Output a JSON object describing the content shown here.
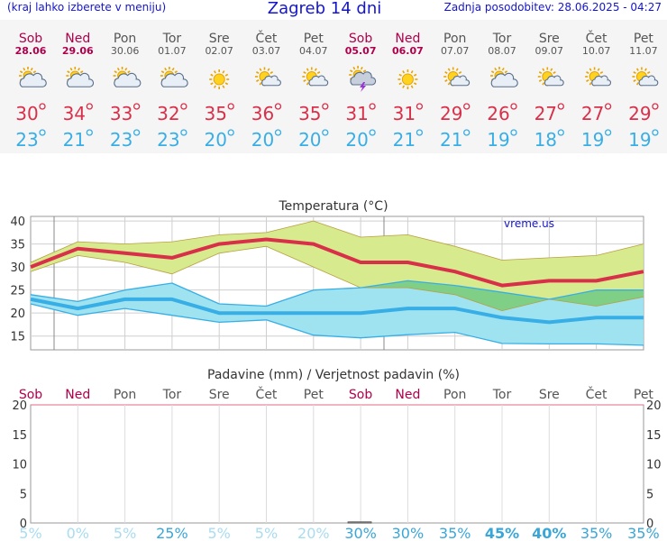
{
  "header": {
    "menu_hint": "(kraj lahko izberete v meniju)",
    "title": "Zagreb 14 dni",
    "updated": "Zadnja posodobitev: 28.06.2025 - 04:27"
  },
  "colors": {
    "header_text": "#1515cc",
    "weekend_day": "#b0004c",
    "weekday": "#555555",
    "max_temp": "#d9304a",
    "min_temp": "#38aee6",
    "max_band": "#d7ea8e",
    "min_band": "#9fe3f0",
    "overlap_band": "#7fcf87",
    "precip_prob": "#3aa6d8"
  },
  "forecast": [
    {
      "day": "Sob",
      "date": "28.06",
      "weekend": true,
      "icon": "partly-cloudy-icon",
      "max": "30",
      "min": "23"
    },
    {
      "day": "Ned",
      "date": "29.06",
      "weekend": true,
      "icon": "partly-cloudy-icon",
      "max": "34",
      "min": "21"
    },
    {
      "day": "Pon",
      "date": "30.06",
      "weekend": false,
      "icon": "partly-cloudy-icon",
      "max": "33",
      "min": "23"
    },
    {
      "day": "Tor",
      "date": "01.07",
      "weekend": false,
      "icon": "partly-cloudy-icon",
      "max": "32",
      "min": "23"
    },
    {
      "day": "Sre",
      "date": "02.07",
      "weekend": false,
      "icon": "sun-icon",
      "max": "35",
      "min": "20"
    },
    {
      "day": "Čet",
      "date": "03.07",
      "weekend": false,
      "icon": "sun-small-cloud-icon",
      "max": "36",
      "min": "20"
    },
    {
      "day": "Pet",
      "date": "04.07",
      "weekend": false,
      "icon": "sun-small-cloud-icon",
      "max": "35",
      "min": "20"
    },
    {
      "day": "Sob",
      "date": "05.07",
      "weekend": true,
      "icon": "thunderstorm-icon",
      "max": "31",
      "min": "20"
    },
    {
      "day": "Ned",
      "date": "06.07",
      "weekend": true,
      "icon": "sun-icon",
      "max": "31",
      "min": "21"
    },
    {
      "day": "Pon",
      "date": "07.07",
      "weekend": false,
      "icon": "sun-small-cloud-icon",
      "max": "29",
      "min": "21"
    },
    {
      "day": "Tor",
      "date": "08.07",
      "weekend": false,
      "icon": "partly-cloudy-icon",
      "max": "26",
      "min": "19"
    },
    {
      "day": "Sre",
      "date": "09.07",
      "weekend": false,
      "icon": "sun-small-cloud-icon",
      "max": "27",
      "min": "18"
    },
    {
      "day": "Čet",
      "date": "10.07",
      "weekend": false,
      "icon": "sun-small-cloud-icon",
      "max": "27",
      "min": "19"
    },
    {
      "day": "Pet",
      "date": "11.07",
      "weekend": false,
      "icon": "sun-small-cloud-icon",
      "max": "29",
      "min": "19"
    }
  ],
  "chart_data": [
    {
      "type": "area",
      "title": "Temperatura (°C)",
      "watermark": "vreme.us",
      "ylim": [
        12,
        41
      ],
      "yticks": [
        15,
        20,
        25,
        30,
        35,
        40
      ],
      "grid": true,
      "series": [
        {
          "values": [
            30,
            34,
            33,
            32,
            35,
            36,
            35,
            31,
            31,
            29,
            26,
            27,
            27,
            29
          ]
        },
        {
          "values": [
            31,
            35.5,
            35,
            35.5,
            37,
            37.5,
            40,
            36.5,
            37,
            34.5,
            31.5,
            32,
            32.5,
            35
          ]
        },
        {
          "values": [
            29,
            32.5,
            31,
            28.5,
            33,
            34.5,
            30,
            25.5,
            25.5,
            24,
            20.5,
            23,
            21.5,
            23.5
          ]
        },
        {
          "values": [
            23,
            21,
            23,
            23,
            20,
            20,
            20,
            20,
            21,
            21,
            19,
            18,
            19,
            19
          ]
        },
        {
          "values": [
            24,
            22.5,
            25,
            26.5,
            22,
            21.5,
            25,
            25.5,
            27,
            26,
            24.5,
            23,
            25,
            25
          ]
        },
        {
          "values": [
            22,
            19.5,
            21,
            19.5,
            18,
            18.5,
            15.2,
            14.6,
            15.3,
            15.8,
            13.4,
            13.3,
            13.3,
            13
          ]
        }
      ]
    },
    {
      "type": "bar",
      "title": "Padavine (mm) / Verjetnost padavin (%)",
      "ylim": [
        0,
        20
      ],
      "yticks": [
        0,
        5,
        10,
        15,
        20
      ],
      "categories": [
        "Sob",
        "Ned",
        "Pon",
        "Tor",
        "Sre",
        "Čet",
        "Pet",
        "Sob",
        "Ned",
        "Pon",
        "Tor",
        "Sre",
        "Čet",
        "Pet"
      ],
      "precip_mm": [
        0,
        0,
        0,
        0,
        0,
        0,
        0,
        0.2,
        0,
        0,
        0,
        0,
        0,
        0
      ],
      "probability": [
        "5%",
        "0%",
        "5%",
        "25%",
        "5%",
        "5%",
        "20%",
        "30%",
        "30%",
        "35%",
        "45%",
        "40%",
        "35%",
        "35%"
      ],
      "probability_values": [
        5,
        0,
        5,
        25,
        5,
        5,
        20,
        30,
        30,
        35,
        45,
        40,
        35,
        35
      ]
    }
  ]
}
